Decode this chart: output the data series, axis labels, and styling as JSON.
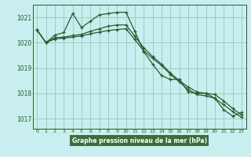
{
  "title": "Graphe pression niveau de la mer (hPa)",
  "bg_color": "#c8eef0",
  "plot_bg_color": "#c8eef0",
  "grid_color": "#90ccbb",
  "line_color": "#2a5c2a",
  "label_bg": "#3a6e3a",
  "label_fg": "#ffffff",
  "ylim": [
    1016.6,
    1021.5
  ],
  "xlim": [
    -0.5,
    23.5
  ],
  "yticks": [
    1017,
    1018,
    1019,
    1020,
    1021
  ],
  "xticks": [
    0,
    1,
    2,
    3,
    4,
    5,
    6,
    7,
    8,
    9,
    10,
    11,
    12,
    13,
    14,
    15,
    16,
    17,
    18,
    19,
    20,
    21,
    22,
    23
  ],
  "series1": [
    1020.5,
    1020.0,
    1020.3,
    1020.4,
    1021.15,
    1020.6,
    1020.85,
    1021.1,
    1021.15,
    1021.2,
    1021.2,
    1020.45,
    1019.65,
    1019.15,
    1018.7,
    1018.55,
    1018.55,
    1018.05,
    1018.0,
    1018.0,
    1017.8,
    1017.35,
    1017.1,
    1017.25
  ],
  "series2": [
    1020.5,
    1020.0,
    1020.2,
    1020.22,
    1020.28,
    1020.33,
    1020.45,
    1020.55,
    1020.65,
    1020.7,
    1020.7,
    1020.25,
    1019.8,
    1019.45,
    1019.15,
    1018.8,
    1018.5,
    1018.25,
    1018.05,
    1018.0,
    1017.95,
    1017.7,
    1017.4,
    1017.15
  ],
  "series3": [
    1020.5,
    1020.0,
    1020.15,
    1020.18,
    1020.22,
    1020.27,
    1020.35,
    1020.42,
    1020.48,
    1020.52,
    1020.55,
    1020.12,
    1019.68,
    1019.38,
    1019.1,
    1018.75,
    1018.45,
    1018.15,
    1017.95,
    1017.9,
    1017.8,
    1017.55,
    1017.28,
    1017.05
  ]
}
